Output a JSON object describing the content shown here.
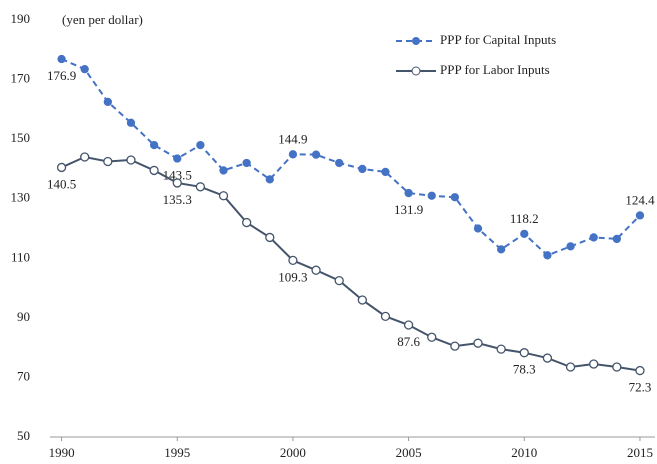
{
  "chart_data": {
    "type": "line",
    "y_label": "(yen per dollar)",
    "x": [
      1990,
      1991,
      1992,
      1993,
      1994,
      1995,
      1996,
      1997,
      1998,
      1999,
      2000,
      2001,
      2002,
      2003,
      2004,
      2005,
      2006,
      2007,
      2008,
      2009,
      2010,
      2011,
      2012,
      2013,
      2014,
      2015
    ],
    "xlim": [
      1989.5,
      2015.65
    ],
    "xticks": [
      1990,
      1995,
      2000,
      2005,
      2010,
      2015
    ],
    "ylim": [
      50,
      190
    ],
    "yticks": [
      50,
      70,
      90,
      110,
      130,
      150,
      170,
      190
    ],
    "legend": "upper right",
    "series": [
      {
        "name": "PPP for Capital Inputs",
        "color": "#4472c4",
        "style": "dashed",
        "values": [
          176.9,
          173.5,
          162.5,
          155.5,
          148,
          143.5,
          148,
          139.5,
          142,
          136.5,
          144.9,
          144.8,
          142,
          140,
          139,
          131.9,
          131,
          130.5,
          120,
          113,
          118.2,
          111,
          114,
          117,
          116.5,
          124.4
        ],
        "value_labels": [
          "176.9",
          null,
          null,
          null,
          null,
          "143.5",
          null,
          null,
          null,
          null,
          "144.9",
          null,
          null,
          null,
          null,
          "131.9",
          null,
          null,
          null,
          null,
          "118.2",
          null,
          null,
          null,
          null,
          "124.4"
        ]
      },
      {
        "name": "PPP for Labor Inputs",
        "color": "#44546a",
        "style": "solid",
        "values": [
          140.5,
          144,
          142.5,
          143,
          139.5,
          135.3,
          134,
          131,
          122,
          117,
          109.3,
          106,
          102.5,
          96,
          90.5,
          87.6,
          83.5,
          80.5,
          81.5,
          79.5,
          78.3,
          76.5,
          73.5,
          74.5,
          73.5,
          72.3
        ],
        "value_labels": [
          "140.5",
          null,
          null,
          null,
          null,
          "135.3",
          null,
          null,
          null,
          null,
          "109.3",
          null,
          null,
          null,
          null,
          "87.6",
          null,
          null,
          null,
          null,
          "78.3",
          null,
          null,
          null,
          null,
          "72.3"
        ]
      }
    ]
  }
}
